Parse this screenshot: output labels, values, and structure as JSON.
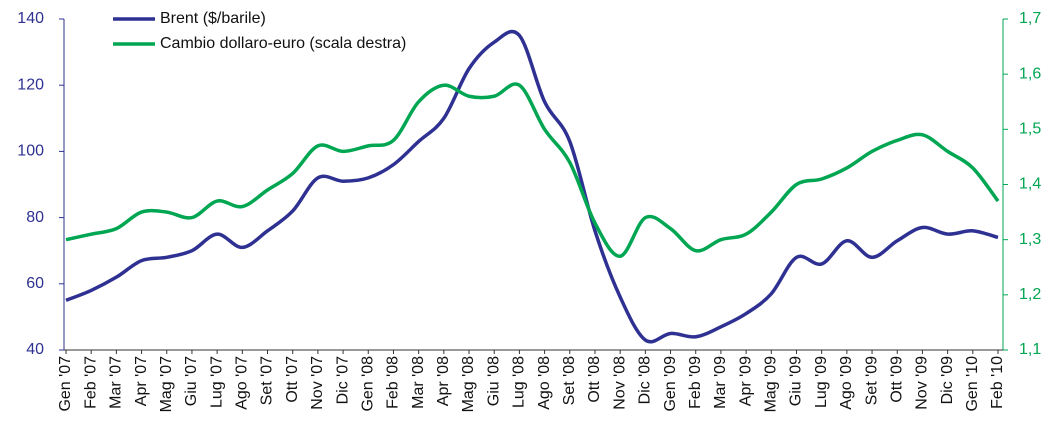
{
  "chart_data": {
    "type": "line",
    "categories": [
      "Gen '07",
      "Feb '07",
      "Mar '07",
      "Apr '07",
      "Mag '07",
      "Giu '07",
      "Lug '07",
      "Ago '07",
      "Set '07",
      "Ott '07",
      "Nov '07",
      "Dic '07",
      "Gen '08",
      "Feb '08",
      "Mar '08",
      "Apr '08",
      "Mag '08",
      "Giu '08",
      "Lug '08",
      "Ago '08",
      "Set '08",
      "Ott '08",
      "Nov '08",
      "Dic '08",
      "Gen '09",
      "Feb '09",
      "Mar '09",
      "Apr '09",
      "Mag '09",
      "Giu '09",
      "Lug '09",
      "Ago '09",
      "Set '09",
      "Ott '09",
      "Nov '09",
      "Dic '09",
      "Gen '10",
      "Feb '10"
    ],
    "series": [
      {
        "name": "Brent ($/barile)",
        "color": "#2e3192",
        "values": [
          55,
          58,
          62,
          67,
          68,
          70,
          75,
          71,
          76,
          82,
          92,
          91,
          92,
          96,
          103,
          110,
          125,
          133,
          135,
          115,
          103,
          76,
          56,
          43,
          45,
          44,
          47,
          51,
          57,
          68,
          66,
          73,
          68,
          73,
          77,
          75,
          76,
          74
        ]
      },
      {
        "name": "Cambio dollaro-euro (scala destra)",
        "color": "#00a651",
        "axis": "y2",
        "values": [
          1.3,
          1.31,
          1.32,
          1.35,
          1.35,
          1.34,
          1.37,
          1.36,
          1.39,
          1.42,
          1.47,
          1.46,
          1.47,
          1.48,
          1.55,
          1.58,
          1.56,
          1.56,
          1.58,
          1.5,
          1.44,
          1.33,
          1.27,
          1.34,
          1.32,
          1.28,
          1.3,
          1.31,
          1.35,
          1.4,
          1.41,
          1.43,
          1.46,
          1.48,
          1.49,
          1.46,
          1.43,
          1.37
        ]
      }
    ],
    "ylim": [
      40,
      140
    ],
    "yticks": [
      40,
      60,
      80,
      100,
      120,
      140
    ],
    "y2lim": [
      1.1,
      1.7
    ],
    "y2ticks": [
      {
        "value": 1.1,
        "label": "1,1"
      },
      {
        "value": 1.2,
        "label": "1,2"
      },
      {
        "value": 1.3,
        "label": "1,3"
      },
      {
        "value": 1.4,
        "label": "1,4"
      },
      {
        "value": 1.5,
        "label": "1,5"
      },
      {
        "value": 1.6,
        "label": "1,6"
      },
      {
        "value": 1.7,
        "label": "1,7"
      }
    ]
  }
}
